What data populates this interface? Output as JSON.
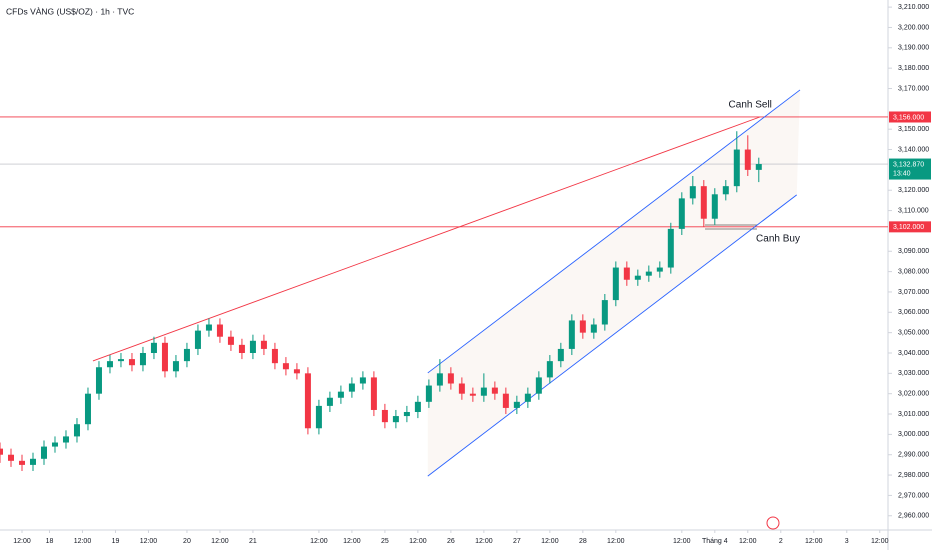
{
  "chart_data": {
    "type": "candlestick",
    "title": "CFDs VÀNG (US$/OZ) · 1h · TVC",
    "up_color": "#089981",
    "down_color": "#f23645",
    "xlim": [
      0,
      161.5
    ],
    "ylim": [
      2953,
      3213.5
    ],
    "x": [
      0,
      2,
      4,
      6,
      8,
      10,
      12,
      14,
      16,
      18,
      20,
      22,
      24,
      26,
      28,
      30,
      32,
      34,
      36,
      38,
      40,
      42,
      44,
      46,
      48,
      50,
      52,
      54,
      56,
      58,
      60,
      62,
      64,
      66,
      68,
      70,
      72,
      74,
      76,
      78,
      80,
      82,
      84,
      86,
      88,
      90,
      92,
      94,
      96,
      98,
      100,
      102,
      104,
      106,
      108,
      110,
      112,
      114,
      116,
      118,
      120,
      122,
      124,
      126,
      128,
      130,
      132,
      134,
      136,
      138
    ],
    "ohlc": [
      [
        2993,
        2996,
        2986,
        2990
      ],
      [
        2990,
        2993,
        2984,
        2987
      ],
      [
        2987,
        2990,
        2982,
        2985
      ],
      [
        2985,
        2991,
        2982,
        2988
      ],
      [
        2988,
        2997,
        2985,
        2994
      ],
      [
        2994,
        2999,
        2991,
        2996
      ],
      [
        2996,
        3002,
        2993,
        2999
      ],
      [
        2999,
        3008,
        2996,
        3005
      ],
      [
        3005,
        3023,
        3002,
        3020
      ],
      [
        3020,
        3036,
        3017,
        3033
      ],
      [
        3033,
        3039,
        3030,
        3036
      ],
      [
        3036,
        3040,
        3033,
        3037
      ],
      [
        3037,
        3040,
        3031,
        3034
      ],
      [
        3034,
        3043,
        3031,
        3040
      ],
      [
        3040,
        3048,
        3037,
        3045
      ],
      [
        3045,
        3048,
        3028,
        3031
      ],
      [
        3031,
        3039,
        3028,
        3036
      ],
      [
        3036,
        3045,
        3033,
        3042
      ],
      [
        3042,
        3054,
        3039,
        3051
      ],
      [
        3051,
        3057,
        3048,
        3054
      ],
      [
        3054,
        3057,
        3045,
        3048
      ],
      [
        3048,
        3051,
        3041,
        3044
      ],
      [
        3044,
        3047,
        3037,
        3040
      ],
      [
        3040,
        3049,
        3037,
        3046
      ],
      [
        3046,
        3049,
        3039,
        3042
      ],
      [
        3042,
        3045,
        3032,
        3035
      ],
      [
        3035,
        3038,
        3029,
        3032
      ],
      [
        3032,
        3035,
        3027,
        3030
      ],
      [
        3030,
        3033,
        3000,
        3003
      ],
      [
        3003,
        3017,
        3000,
        3014
      ],
      [
        3014,
        3021,
        3011,
        3018
      ],
      [
        3018,
        3024,
        3015,
        3021
      ],
      [
        3021,
        3028,
        3018,
        3025
      ],
      [
        3025,
        3031,
        3022,
        3028
      ],
      [
        3028,
        3031,
        3009,
        3012
      ],
      [
        3012,
        3015,
        3003,
        3006
      ],
      [
        3006,
        3012,
        3003,
        3009
      ],
      [
        3009,
        3014,
        3006,
        3011
      ],
      [
        3011,
        3019,
        3008,
        3016
      ],
      [
        3016,
        3027,
        3013,
        3024
      ],
      [
        3024,
        3037,
        3021,
        3030
      ],
      [
        3030,
        3033,
        3022,
        3025
      ],
      [
        3025,
        3028,
        3017,
        3020
      ],
      [
        3020,
        3023,
        3016,
        3019
      ],
      [
        3019,
        3030,
        3016,
        3023
      ],
      [
        3023,
        3026,
        3017,
        3020
      ],
      [
        3020,
        3023,
        3010,
        3013
      ],
      [
        3013,
        3019,
        3010,
        3016
      ],
      [
        3016,
        3023,
        3013,
        3020
      ],
      [
        3020,
        3031,
        3017,
        3028
      ],
      [
        3028,
        3039,
        3025,
        3036
      ],
      [
        3036,
        3045,
        3033,
        3042
      ],
      [
        3042,
        3059,
        3039,
        3056
      ],
      [
        3056,
        3059,
        3047,
        3050
      ],
      [
        3050,
        3057,
        3047,
        3054
      ],
      [
        3054,
        3069,
        3051,
        3066
      ],
      [
        3066,
        3085,
        3063,
        3082
      ],
      [
        3082,
        3085,
        3073,
        3076
      ],
      [
        3076,
        3081,
        3073,
        3078
      ],
      [
        3078,
        3083,
        3075,
        3080
      ],
      [
        3080,
        3085,
        3077,
        3082
      ],
      [
        3082,
        3104,
        3079,
        3101
      ],
      [
        3101,
        3119,
        3098,
        3116
      ],
      [
        3116,
        3127,
        3113,
        3122
      ],
      [
        3122,
        3125,
        3102,
        3106
      ],
      [
        3106,
        3121,
        3103,
        3118
      ],
      [
        3118,
        3125,
        3115,
        3122
      ],
      [
        3122,
        3149,
        3119,
        3140
      ],
      [
        3140,
        3147,
        3127,
        3130
      ],
      [
        3130,
        3136,
        3124,
        3132.87
      ]
    ],
    "yticks": [
      {
        "value": 3210,
        "label": "3,210.000"
      },
      {
        "value": 3200,
        "label": "3,200.000"
      },
      {
        "value": 3190,
        "label": "3,190.000"
      },
      {
        "value": 3180,
        "label": "3,180.000"
      },
      {
        "value": 3170,
        "label": "3,170.000"
      },
      {
        "value": 3150,
        "label": "3,150.000"
      },
      {
        "value": 3140,
        "label": "3,140.000"
      },
      {
        "value": 3120,
        "label": "3,120.000"
      },
      {
        "value": 3110,
        "label": "3,110.000"
      },
      {
        "value": 3090,
        "label": "3,090.000"
      },
      {
        "value": 3080,
        "label": "3,080.000"
      },
      {
        "value": 3070,
        "label": "3,070.000"
      },
      {
        "value": 3060,
        "label": "3,060.000"
      },
      {
        "value": 3050,
        "label": "3,050.000"
      },
      {
        "value": 3040,
        "label": "3,040.000"
      },
      {
        "value": 3030,
        "label": "3,030.000"
      },
      {
        "value": 3020,
        "label": "3,020.000"
      },
      {
        "value": 3010,
        "label": "3,010.000"
      },
      {
        "value": 3000,
        "label": "3,000.000"
      },
      {
        "value": 2990,
        "label": "2,990.000"
      },
      {
        "value": 2980,
        "label": "2,980.000"
      },
      {
        "value": 2970,
        "label": "2,970.000"
      },
      {
        "value": 2960,
        "label": "2,960.000"
      }
    ],
    "xticks": [
      {
        "value": 4,
        "label": "12:00"
      },
      {
        "value": 9,
        "label": "18"
      },
      {
        "value": 15,
        "label": "12:00"
      },
      {
        "value": 21,
        "label": "19"
      },
      {
        "value": 27,
        "label": "12:00"
      },
      {
        "value": 34,
        "label": "20"
      },
      {
        "value": 40,
        "label": "12:00"
      },
      {
        "value": 46,
        "label": "21"
      },
      {
        "value": 58,
        "label": "12:00"
      },
      {
        "value": 64,
        "label": "12:00"
      },
      {
        "value": 70,
        "label": "25"
      },
      {
        "value": 76,
        "label": "12:00"
      },
      {
        "value": 82,
        "label": "26"
      },
      {
        "value": 88,
        "label": "12:00"
      },
      {
        "value": 94,
        "label": "27"
      },
      {
        "value": 100,
        "label": "12:00"
      },
      {
        "value": 106,
        "label": "28"
      },
      {
        "value": 112,
        "label": "12:00"
      },
      {
        "value": 124,
        "label": "12:00"
      },
      {
        "value": 130,
        "label": "Tháng 4"
      },
      {
        "value": 136,
        "label": "12:00"
      },
      {
        "value": 142,
        "label": "2"
      },
      {
        "value": 148,
        "label": "12:00"
      },
      {
        "value": 154,
        "label": "3"
      },
      {
        "value": 160,
        "label": "12:00"
      }
    ],
    "price_lines": [
      {
        "value": 3156,
        "label": "3,156.000",
        "color": "#f23645"
      },
      {
        "value": 3102,
        "label": "3,102.000",
        "color": "#f23645"
      }
    ],
    "last_price": {
      "value": 3132.87,
      "label": "3,132.870",
      "countdown": "13:40",
      "color": "#089981"
    },
    "trendlines": [
      {
        "color": "#f23645",
        "points": [
          [
            16.9,
            3036.1
          ],
          [
            138.2,
            3156
          ]
        ]
      },
      {
        "color": "#2962ff",
        "points": [
          [
            77.8,
            3030.2
          ],
          [
            145.5,
            3169.3
          ]
        ]
      },
      {
        "color": "#2962ff",
        "points": [
          [
            77.8,
            2979.5
          ],
          [
            144.9,
            3117.7
          ]
        ]
      }
    ],
    "annotations": [
      {
        "text": "Canh Sell",
        "x": 132.5,
        "y": 3162
      },
      {
        "text": "Canh Buy",
        "x": 137.5,
        "y": 3096
      }
    ]
  }
}
